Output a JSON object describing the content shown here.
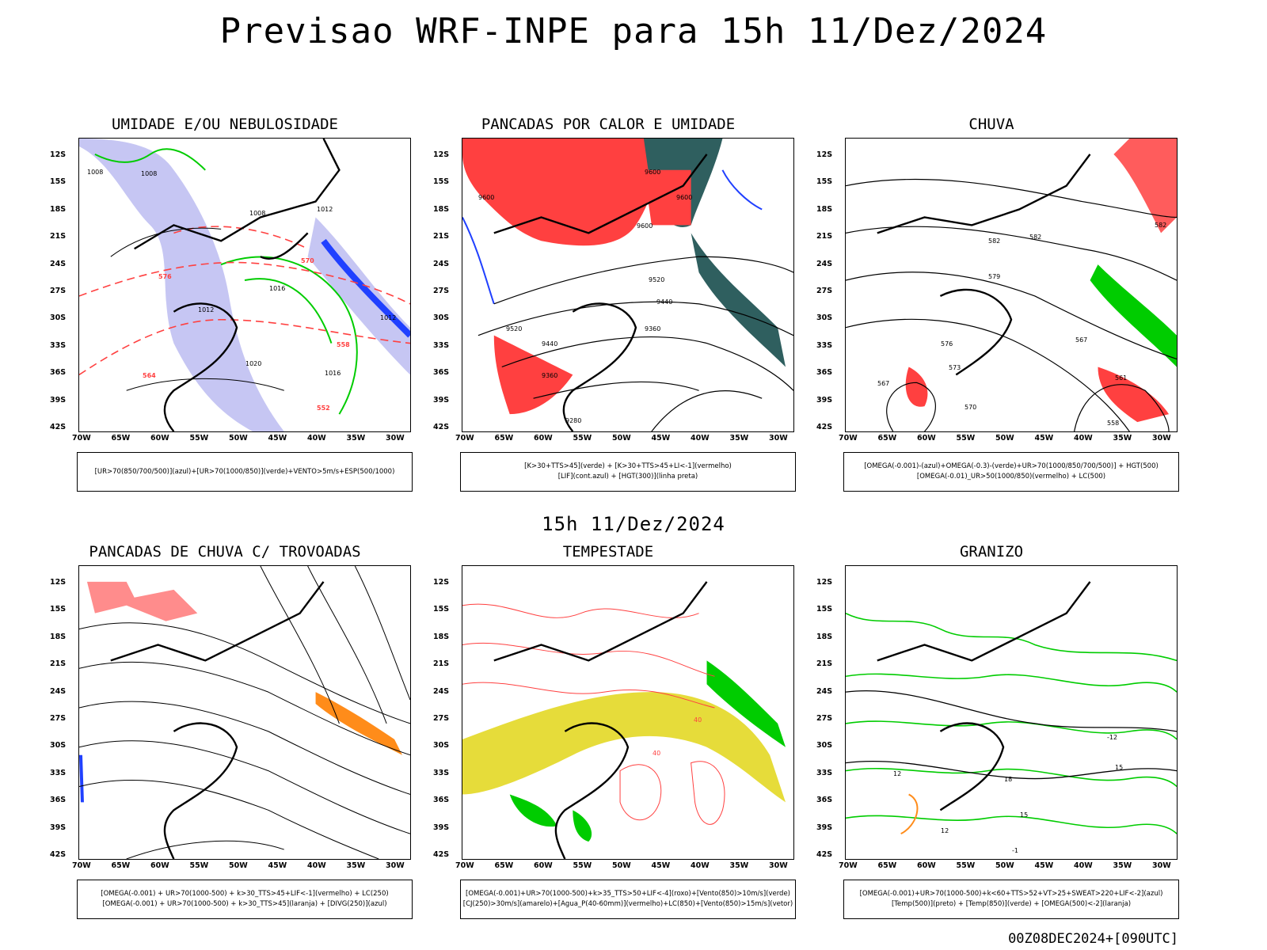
{
  "header": {
    "title": "Previsao WRF-INPE  para 15h 11/Dez/2024"
  },
  "subheader": {
    "title": "15h 11/Dez/2024"
  },
  "footer": {
    "run": "00Z08DEC2024+[090UTC]"
  },
  "axes": {
    "lat_labels": [
      "12S",
      "15S",
      "18S",
      "21S",
      "24S",
      "27S",
      "30S",
      "33S",
      "36S",
      "39S",
      "42S"
    ],
    "lon_labels": [
      "70W",
      "65W",
      "60W",
      "55W",
      "50W",
      "45W",
      "40W",
      "35W",
      "30W"
    ]
  },
  "colors": {
    "red": "#ff4040",
    "green": "#00cc00",
    "blue": "#2040ff",
    "lavender": "#b8b8f0",
    "teal": "#2f5f5f",
    "yellow": "#e6dc3a",
    "orange": "#ff8c1a"
  },
  "panels": [
    {
      "title": "UMIDADE E/OU NEBULOSIDADE",
      "legend": [
        "[UR>70(850/700/500)](azul)+[UR>70(1000/850)](verde)+VENTO>5m/s+ESP(500/1000)"
      ],
      "contour_labels": [
        "1008",
        "1008",
        "1008",
        "1012",
        "1012",
        "1016",
        "1020",
        "1016",
        "1012",
        "576",
        "570",
        "564",
        "558",
        "552"
      ]
    },
    {
      "title": "PANCADAS POR CALOR E UMIDADE",
      "legend": [
        "[K>30+TTS>45](verde) + [K>30+TTS>45+LI<-1](vermelho)",
        "[LIF](cont.azul) + [HGT(300)](linha preta)"
      ],
      "contour_labels": [
        "9600",
        "9600",
        "9600",
        "9600",
        "9520",
        "9440",
        "9360",
        "9440",
        "9520",
        "9360",
        "9280"
      ]
    },
    {
      "title": "CHUVA",
      "legend": [
        "[OMEGA(-0.001)-(azul)+OMEGA(-0.3)-(verde)+UR>70(1000/850/700/500)] + HGT(500)",
        "[OMEGA(-0.01)_UR>50(1000/850)(vermelho) + LC(500)"
      ],
      "contour_labels": [
        "582",
        "582",
        "579",
        "576",
        "573",
        "570",
        "567",
        "567",
        "561",
        "558",
        "582"
      ]
    },
    {
      "title": "PANCADAS DE CHUVA C/ TROVOADAS",
      "legend": [
        "[OMEGA(-0.001) + UR>70(1000-500) + k>30_TTS>45+LIF<-1](vermelho) + LC(250)",
        "[OMEGA(-0.001) + UR>70(1000-500) + k>30_TTS>45](laranja) + [DIVG(250)](azul)"
      ],
      "contour_labels": []
    },
    {
      "title": "TEMPESTADE",
      "legend": [
        "[OMEGA(-0.001)+UR>70(1000-500)+k>35_TTS>50+LIF<-4](roxo)+[Vento(850)>10m/s](verde)",
        "[CJ(250)>30m/s](amarelo)+[Agua_P(40-60mm)](vermelho)+LC(850)+[Vento(850)>15m/s](vetor)"
      ],
      "contour_labels": [
        "40",
        "40"
      ]
    },
    {
      "title": "GRANIZO",
      "legend": [
        "[OMEGA(-0.001)+UR>70(1000-500)+k<60+TTS>52+VT>25+SWEAT>220+LIF<-2](azul)",
        "[Temp(500)](preto) + [Temp(850)](verde) + [OMEGA(500)<-2](laranja)"
      ],
      "contour_labels": [
        "-12",
        "12",
        "15",
        "18",
        "15",
        "12",
        "-1"
      ]
    }
  ]
}
